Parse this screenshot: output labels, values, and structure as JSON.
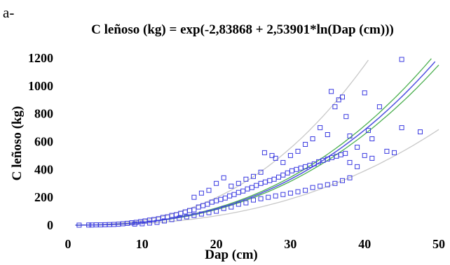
{
  "panel_label": "a-",
  "chart_data": {
    "type": "scatter",
    "title": "C leñoso (kg) = exp(-2,83868 + 2,53901*ln(Dap (cm)))",
    "xlabel": "Dap (cm)",
    "ylabel": "C leñoso (kg)",
    "xlim": [
      0,
      50
    ],
    "ylim": [
      0,
      1200
    ],
    "x_ticks": [
      "0",
      "10",
      "20",
      "30",
      "40",
      "50"
    ],
    "y_ticks": [
      "0",
      "200",
      "400",
      "600",
      "800",
      "1000",
      "1200"
    ],
    "grid": false,
    "legend": "none",
    "colors": {
      "points": "#3a3ae0",
      "fit": "#5050e0",
      "confidence": "#4caf50",
      "prediction": "#c8c8c8"
    },
    "model": {
      "intercept": -2.83868,
      "slope": 2.53901
    },
    "series": [
      {
        "type": "scatter",
        "values": [
          [
            1.5,
            0
          ],
          [
            2.8,
            1
          ],
          [
            3.2,
            1
          ],
          [
            3.8,
            2
          ],
          [
            4.4,
            2
          ],
          [
            5,
            3
          ],
          [
            5.6,
            4
          ],
          [
            6.2,
            5
          ],
          [
            6.8,
            7
          ],
          [
            7.4,
            10
          ],
          [
            8,
            13
          ],
          [
            8.6,
            17
          ],
          [
            9.2,
            20
          ],
          [
            9.8,
            25
          ],
          [
            10.4,
            30
          ],
          [
            11,
            36
          ],
          [
            11.6,
            40
          ],
          [
            12.2,
            46
          ],
          [
            12.8,
            55
          ],
          [
            13.4,
            60
          ],
          [
            14,
            70
          ],
          [
            14.6,
            75
          ],
          [
            15.2,
            85
          ],
          [
            15.8,
            95
          ],
          [
            16.4,
            105
          ],
          [
            17,
            110
          ],
          [
            17.6,
            130
          ],
          [
            18.2,
            140
          ],
          [
            18.8,
            150
          ],
          [
            19.4,
            165
          ],
          [
            20,
            175
          ],
          [
            20.6,
            185
          ],
          [
            21.2,
            195
          ],
          [
            21.8,
            210
          ],
          [
            22.4,
            220
          ],
          [
            23,
            235
          ],
          [
            23.6,
            245
          ],
          [
            24.2,
            260
          ],
          [
            24.8,
            270
          ],
          [
            25.4,
            285
          ],
          [
            26,
            300
          ],
          [
            26.6,
            310
          ],
          [
            27.2,
            320
          ],
          [
            27.8,
            330
          ],
          [
            28.4,
            345
          ],
          [
            29,
            360
          ],
          [
            29.6,
            375
          ],
          [
            30.2,
            390
          ],
          [
            30.8,
            400
          ],
          [
            31.4,
            410
          ],
          [
            32,
            420
          ],
          [
            32.6,
            430
          ],
          [
            33.2,
            440
          ],
          [
            33.8,
            455
          ],
          [
            34.4,
            465
          ],
          [
            35,
            475
          ],
          [
            35.6,
            485
          ],
          [
            36.2,
            495
          ],
          [
            36.8,
            505
          ],
          [
            37.4,
            515
          ],
          [
            17,
            200
          ],
          [
            18,
            230
          ],
          [
            19,
            250
          ],
          [
            20,
            300
          ],
          [
            21,
            340
          ],
          [
            22,
            280
          ],
          [
            23,
            300
          ],
          [
            24,
            330
          ],
          [
            25,
            350
          ],
          [
            26,
            380
          ],
          [
            26.5,
            520
          ],
          [
            27.5,
            500
          ],
          [
            28,
            480
          ],
          [
            29,
            450
          ],
          [
            30,
            500
          ],
          [
            31,
            530
          ],
          [
            32,
            580
          ],
          [
            33,
            620
          ],
          [
            34,
            700
          ],
          [
            35,
            650
          ],
          [
            35.5,
            960
          ],
          [
            36.5,
            900
          ],
          [
            37,
            920
          ],
          [
            36,
            850
          ],
          [
            37.5,
            780
          ],
          [
            38,
            640
          ],
          [
            39,
            560
          ],
          [
            40,
            950
          ],
          [
            40.5,
            680
          ],
          [
            41,
            620
          ],
          [
            42,
            850
          ],
          [
            43,
            530
          ],
          [
            44,
            520
          ],
          [
            45,
            1190
          ],
          [
            45,
            700
          ],
          [
            47.5,
            670
          ],
          [
            38,
            450
          ],
          [
            39,
            420
          ],
          [
            40,
            500
          ],
          [
            41,
            480
          ],
          [
            19,
            90
          ],
          [
            20,
            100
          ],
          [
            21,
            120
          ],
          [
            22,
            130
          ],
          [
            23,
            150
          ],
          [
            24,
            160
          ],
          [
            25,
            180
          ],
          [
            26,
            190
          ],
          [
            27,
            200
          ],
          [
            28,
            210
          ],
          [
            29,
            220
          ],
          [
            30,
            230
          ],
          [
            31,
            240
          ],
          [
            32,
            250
          ],
          [
            33,
            270
          ],
          [
            34,
            280
          ],
          [
            35,
            290
          ],
          [
            36,
            300
          ],
          [
            37,
            320
          ],
          [
            38,
            340
          ],
          [
            14,
            40
          ],
          [
            15,
            50
          ],
          [
            16,
            60
          ],
          [
            17,
            70
          ],
          [
            18,
            80
          ],
          [
            12,
            20
          ],
          [
            13,
            30
          ],
          [
            11,
            15
          ],
          [
            10,
            10
          ],
          [
            9,
            8
          ]
        ]
      }
    ]
  }
}
